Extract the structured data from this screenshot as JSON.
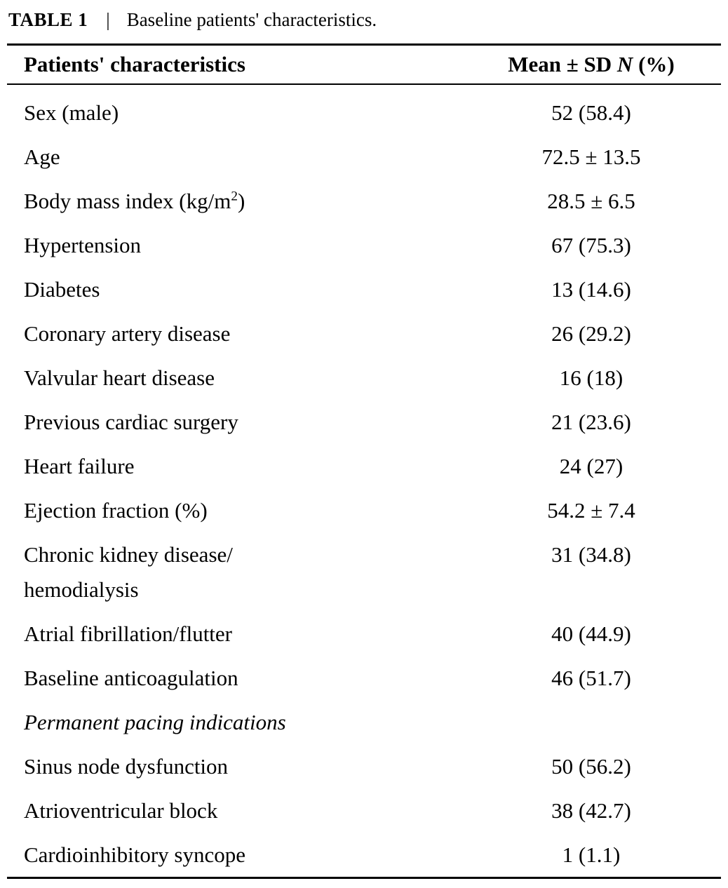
{
  "caption": {
    "title": "TABLE 1",
    "separator": "|",
    "text": "Baseline patients' characteristics."
  },
  "table": {
    "header": {
      "col1": "Patients' characteristics",
      "col2_pre": "Mean ± SD ",
      "col2_italic": "N",
      "col2_post": " (%)"
    },
    "rows": [
      {
        "label": "Sex (male)",
        "value": "52 (58.4)"
      },
      {
        "label": "Age",
        "value": "72.5 ± 13.5"
      },
      {
        "label_pre": "Body mass index (kg/m",
        "label_sup": "2",
        "label_post": ")",
        "value": "28.5 ± 6.5"
      },
      {
        "label": "Hypertension",
        "value": "67 (75.3)"
      },
      {
        "label": "Diabetes",
        "value": "13 (14.6)"
      },
      {
        "label": "Coronary artery disease",
        "value": "26 (29.2)"
      },
      {
        "label": "Valvular heart disease",
        "value": "16 (18)"
      },
      {
        "label": "Previous cardiac surgery",
        "value": "21 (23.6)"
      },
      {
        "label": "Heart failure",
        "value": "24 (27)"
      },
      {
        "label": "Ejection fraction (%)",
        "value": "54.2 ± 7.4"
      },
      {
        "label": "Chronic kidney disease/",
        "label_line2": "hemodialysis",
        "value": "31 (34.8)"
      },
      {
        "label": "Atrial fibrillation/flutter",
        "value": "40 (44.9)"
      },
      {
        "label": "Baseline anticoagulation",
        "value": "46 (51.7)"
      },
      {
        "label": "Permanent pacing indications",
        "value": ""
      },
      {
        "label": "Sinus node dysfunction",
        "value": "50 (56.2)"
      },
      {
        "label": "Atrioventricular block",
        "value": "38 (42.7)"
      },
      {
        "label": "Cardioinhibitory syncope",
        "value": "1 (1.1)"
      }
    ]
  }
}
